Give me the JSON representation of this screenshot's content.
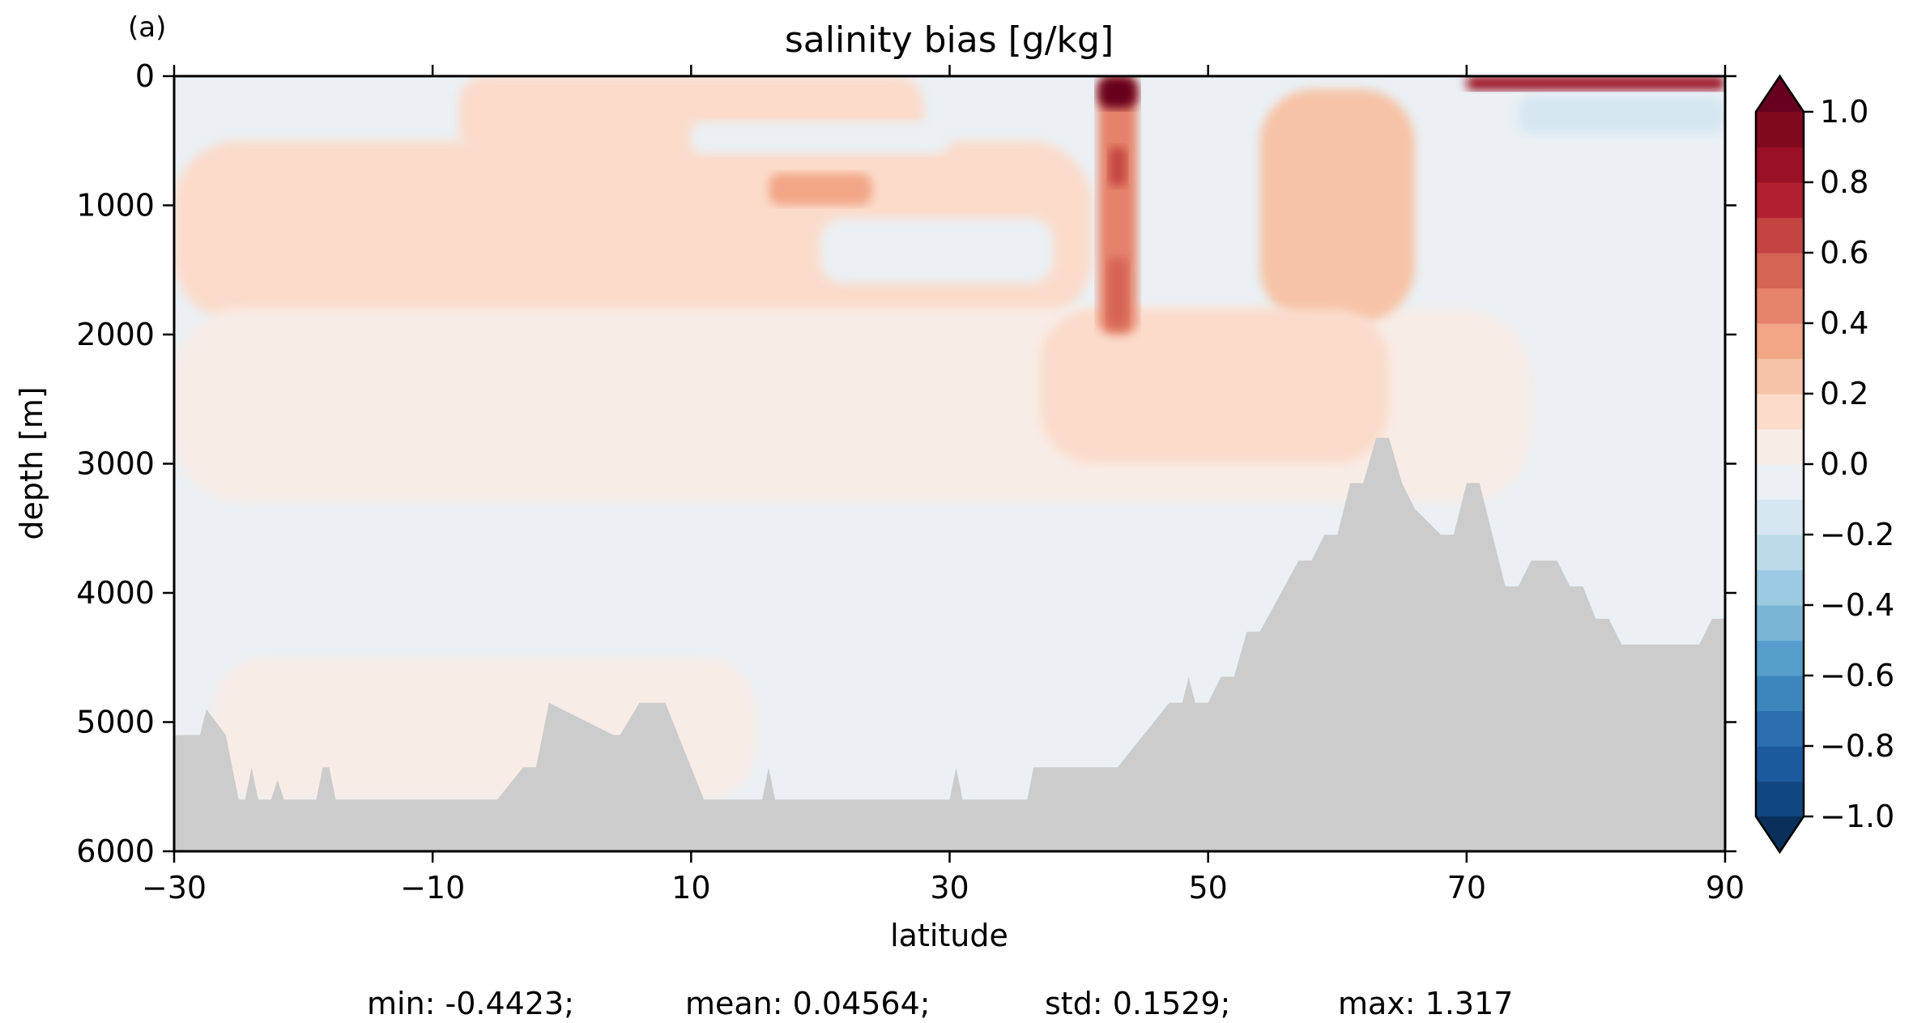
{
  "panel_label": "(a)",
  "stats": {
    "min": "min: -0.4423;",
    "mean": "mean: 0.04564;",
    "std": "std: 0.1529;",
    "max": "max: 1.317"
  },
  "chart_data": {
    "type": "heatmap",
    "title": "salinity bias [g/kg]",
    "xlabel": "latitude",
    "ylabel": "depth [m]",
    "xlim": [
      -30,
      90
    ],
    "ylim": [
      6000,
      0
    ],
    "x_ticks": [
      -30,
      -10,
      10,
      30,
      50,
      70,
      90
    ],
    "x_tick_labels": [
      "−30",
      "−10",
      "10",
      "30",
      "50",
      "70",
      "90"
    ],
    "y_ticks": [
      0,
      1000,
      2000,
      3000,
      4000,
      5000,
      6000
    ],
    "y_tick_labels": [
      "0",
      "1000",
      "2000",
      "3000",
      "4000",
      "5000",
      "6000"
    ],
    "colorbar": {
      "colormap": "RdBu_r",
      "extend": "both",
      "levels": [
        -1.0,
        -0.9,
        -0.8,
        -0.7,
        -0.6,
        -0.5,
        -0.4,
        -0.3,
        -0.2,
        -0.1,
        0.0,
        0.1,
        0.2,
        0.3,
        0.4,
        0.5,
        0.6,
        0.7,
        0.8,
        0.9,
        1.0
      ],
      "colors": [
        "#114781",
        "#1b5a9d",
        "#2b6fb0",
        "#3c86bd",
        "#559ecb",
        "#7ab5d6",
        "#9ccae2",
        "#bbdaea",
        "#d6e7f1",
        "#eaf0f4",
        "#f8ece7",
        "#fbdccb",
        "#f7c3a6",
        "#f2a686",
        "#e5836b",
        "#d56454",
        "#c44442",
        "#b0202f",
        "#9a1024",
        "#7f0a1f"
      ],
      "under_color": "#0a2f5b",
      "over_color": "#67001f",
      "ticks": [
        -1.0,
        -0.8,
        -0.6,
        -0.4,
        -0.2,
        0.0,
        0.2,
        0.4,
        0.6,
        0.8,
        1.0
      ],
      "tick_labels": [
        "−1.0",
        "−0.8",
        "−0.6",
        "−0.4",
        "−0.2",
        "0.0",
        "0.2",
        "0.4",
        "0.6",
        "0.8",
        "1.0"
      ]
    },
    "land_color": "#cccccc",
    "background_value": -0.05,
    "bias_regions": [
      {
        "name": "south-intermediate",
        "lat": [
          -30,
          41
        ],
        "depth": [
          500,
          1900
        ],
        "value": 0.15
      },
      {
        "name": "shallow-subtropic",
        "lat": [
          -8,
          28
        ],
        "depth": [
          0,
          600
        ],
        "value": 0.1
      },
      {
        "name": "deep-north",
        "lat": [
          -30,
          75
        ],
        "depth": [
          1800,
          3300
        ],
        "value": 0.05
      },
      {
        "name": "abyssal-south",
        "lat": [
          -27,
          15
        ],
        "depth": [
          4500,
          5600
        ],
        "value": 0.05
      },
      {
        "name": "intermediate-maximum",
        "lat": [
          16,
          24
        ],
        "depth": [
          750,
          1000
        ],
        "value": 0.3
      },
      {
        "name": "subpolar-column",
        "lat": [
          54,
          66
        ],
        "depth": [
          100,
          1900
        ],
        "value": 0.2
      },
      {
        "name": "mixed-north",
        "lat": [
          37,
          64
        ],
        "depth": [
          1800,
          3000
        ],
        "value": 0.15
      },
      {
        "name": "fresh-patch-mid",
        "lat": [
          20,
          38
        ],
        "depth": [
          1100,
          1600
        ],
        "value": -0.1
      },
      {
        "name": "fresh-patch-shallow",
        "lat": [
          10,
          30
        ],
        "depth": [
          350,
          600
        ],
        "value": -0.1
      },
      {
        "name": "fresh-patch-north",
        "lat": [
          74,
          90
        ],
        "depth": [
          150,
          450
        ],
        "value": -0.15
      },
      {
        "name": "outflow-plume",
        "lat": [
          41.5,
          44.5
        ],
        "depth": [
          0,
          2000
        ],
        "value": 0.45
      },
      {
        "name": "outflow-core-lower",
        "lat": [
          42.2,
          43.8
        ],
        "depth": [
          1400,
          1950
        ],
        "value": 0.55
      },
      {
        "name": "outflow-core-upper",
        "lat": [
          42.3,
          43.7
        ],
        "depth": [
          550,
          850
        ],
        "value": 0.6
      },
      {
        "name": "surface-strait",
        "lat": [
          41.5,
          44.5
        ],
        "depth": [
          0,
          250
        ],
        "value": 1.0
      },
      {
        "name": "surface-arctic",
        "lat": [
          70,
          90
        ],
        "depth": [
          0,
          110
        ],
        "value": 0.8
      }
    ],
    "bathymetry": {
      "lat": [
        -30,
        -28,
        -27.5,
        -26,
        -25,
        -24.5,
        -24,
        -23.5,
        -22.5,
        -22,
        -21.5,
        -19,
        -18.5,
        -18,
        -17.5,
        -5,
        -3,
        -2,
        -1.5,
        -1,
        4,
        4.5,
        6,
        8,
        9,
        11,
        15.5,
        16,
        16.5,
        30,
        30.5,
        31,
        36,
        36.5,
        42,
        43,
        45,
        47,
        48,
        48.5,
        49,
        50,
        51,
        52,
        53,
        54,
        57,
        58,
        59,
        60,
        61,
        62,
        63,
        64,
        65,
        66,
        68,
        69,
        70,
        71,
        72,
        73,
        74,
        75,
        77,
        78,
        79,
        80,
        81,
        82,
        84,
        85,
        87,
        88,
        89,
        90
      ],
      "depth": [
        5100,
        5100,
        4900,
        5100,
        5600,
        5600,
        5350,
        5600,
        5600,
        5450,
        5600,
        5600,
        5350,
        5350,
        5600,
        5600,
        5350,
        5350,
        5100,
        4850,
        5100,
        5100,
        4850,
        4850,
        5100,
        5600,
        5600,
        5350,
        5600,
        5600,
        5350,
        5600,
        5600,
        5350,
        5350,
        5350,
        5100,
        4850,
        4850,
        4650,
        4850,
        4850,
        4650,
        4650,
        4300,
        4300,
        3750,
        3750,
        3550,
        3550,
        3150,
        3150,
        2800,
        2800,
        3150,
        3350,
        3550,
        3550,
        3150,
        3150,
        3550,
        3950,
        3950,
        3750,
        3750,
        3950,
        3950,
        4200,
        4200,
        4400,
        4400,
        4400,
        4400,
        4400,
        4200,
        4200
      ]
    }
  }
}
